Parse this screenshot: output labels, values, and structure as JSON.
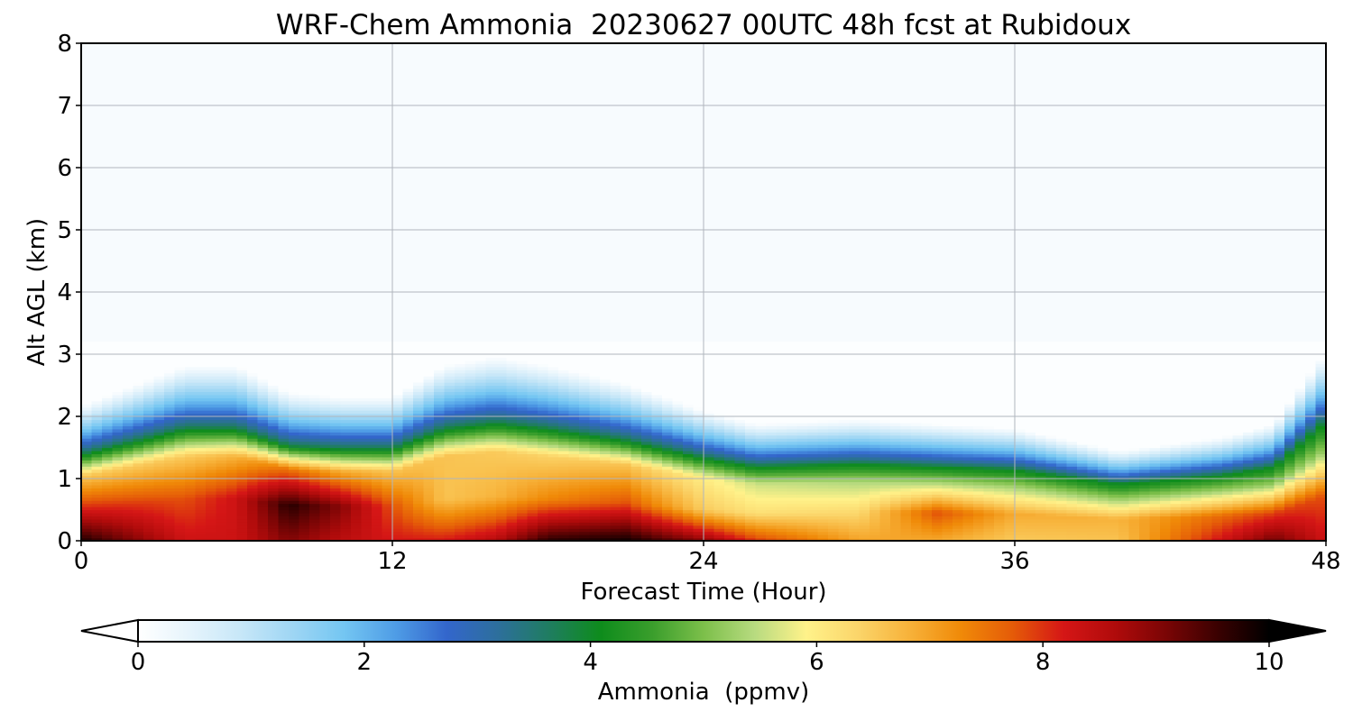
{
  "chart_data": {
    "type": "heatmap",
    "title": "WRF-Chem Ammonia  20230627 00UTC 48h fcst at Rubidoux",
    "xlabel": "Forecast Time (Hour)",
    "ylabel": "Alt AGL (km)",
    "xlim": [
      0,
      48
    ],
    "ylim": [
      0,
      8
    ],
    "x_ticks": [
      0,
      12,
      24,
      36,
      48
    ],
    "y_ticks": [
      0,
      1,
      2,
      3,
      4,
      5,
      6,
      7,
      8
    ],
    "grid": true,
    "z_units": "ppmv",
    "colorbar": {
      "label": "Ammonia  (ppmv)",
      "min": 0,
      "max": 10,
      "ticks": [
        0,
        2,
        4,
        6,
        8,
        10
      ],
      "extend": "both",
      "colors": [
        "#ffffff",
        "#e6f4fc",
        "#c7e7f8",
        "#9fd6f4",
        "#74c6f2",
        "#4f9de6",
        "#3366cc",
        "#2d6f9c",
        "#1f7d60",
        "#0e8c1c",
        "#3a9e2c",
        "#7cbf4a",
        "#b8db80",
        "#fff28a",
        "#fbd56a",
        "#f7b23a",
        "#f08a08",
        "#e55c08",
        "#d51616",
        "#b00b0b",
        "#7a0505",
        "#3a0101",
        "#000000"
      ]
    },
    "field": {
      "x": [
        0,
        4,
        6,
        8,
        10,
        12,
        14,
        16,
        18,
        21,
        24,
        26,
        30,
        33,
        36,
        40,
        44,
        46,
        48
      ],
      "layers": [
        {
          "name": "surface_core",
          "value_ppmv": [
            9.8,
            8.3,
            8.3,
            9.0,
            8.5,
            8.2,
            8.2,
            8.6,
            9.7,
            9.9,
            9.0,
            8.0,
            7.0,
            6.9,
            6.5,
            6.6,
            8.3,
            9.2,
            8.3
          ]
        },
        {
          "name": "mid_mixed_layer",
          "value_ppmv": [
            8.1,
            7.8,
            8.3,
            9.7,
            9.0,
            7.8,
            6.6,
            6.8,
            7.3,
            7.8,
            6.5,
            6.2,
            6.3,
            7.8,
            6.9,
            6.8,
            7.6,
            7.9,
            7.8
          ]
        },
        {
          "name": "upper_mixed_layer",
          "value_ppmv": [
            6.5,
            6.5,
            6.8,
            7.5,
            6.9,
            6.6,
            6.6,
            6.5,
            6.4,
            6.6,
            6.0,
            5.6,
            5.4,
            5.5,
            5.3,
            5.1,
            5.3,
            5.2,
            5.2
          ]
        },
        {
          "name": "free_troposphere",
          "value_ppmv": [
            0.05,
            0.05,
            0.05,
            0.05,
            0.05,
            0.05,
            0.05,
            0.05,
            0.05,
            0.05,
            0.05,
            0.05,
            0.05,
            0.05,
            0.05,
            0.05,
            0.05,
            0.05,
            0.05
          ]
        }
      ],
      "boundary_layer_top_km": [
        1.5,
        1.95,
        1.95,
        1.65,
        1.6,
        1.6,
        1.95,
        2.05,
        1.95,
        1.75,
        1.45,
        1.3,
        1.35,
        1.3,
        1.25,
        1.0,
        1.15,
        1.3,
        2.1
      ]
    }
  }
}
